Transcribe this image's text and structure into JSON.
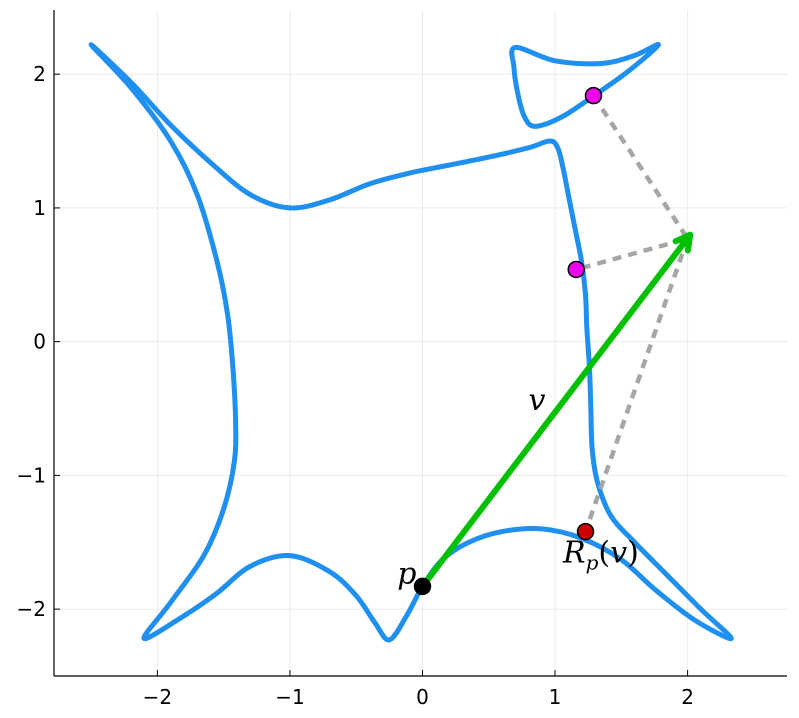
{
  "chart_data": {
    "type": "line",
    "title": "",
    "xlabel": "",
    "ylabel": "",
    "xlim": [
      -2.78,
      2.75
    ],
    "ylim": [
      -2.5,
      2.48
    ],
    "grid": true,
    "legend": "none",
    "x_ticks": [
      {
        "value": -2,
        "label": "−2"
      },
      {
        "value": -1,
        "label": "−1"
      },
      {
        "value": 0,
        "label": "0"
      },
      {
        "value": 1,
        "label": "1"
      },
      {
        "value": 2,
        "label": "2"
      }
    ],
    "y_ticks": [
      {
        "value": -2,
        "label": "−2"
      },
      {
        "value": -1,
        "label": "−1"
      },
      {
        "value": 0,
        "label": "0"
      },
      {
        "value": 1,
        "label": "1"
      },
      {
        "value": 2,
        "label": "2"
      }
    ],
    "series": [
      {
        "kind": "curve",
        "color": "#1f8ff0",
        "points": [
          [
            -2.5,
            2.22
          ],
          [
            -2.2,
            1.94
          ],
          [
            -1.9,
            1.62
          ],
          [
            -1.6,
            1.34
          ],
          [
            -1.3,
            1.1
          ],
          [
            -1.0,
            1.0
          ],
          [
            -0.7,
            1.06
          ],
          [
            -0.4,
            1.18
          ],
          [
            -0.1,
            1.26
          ],
          [
            0.2,
            1.32
          ],
          [
            0.5,
            1.38
          ],
          [
            0.8,
            1.45
          ],
          [
            0.96,
            1.5
          ],
          [
            1.02,
            1.45
          ],
          [
            1.06,
            1.3
          ],
          [
            1.1,
            1.1
          ],
          [
            1.15,
            0.85
          ],
          [
            1.2,
            0.6
          ],
          [
            1.23,
            0.35
          ],
          [
            1.24,
            0.1
          ],
          [
            1.26,
            -0.2
          ],
          [
            1.27,
            -0.5
          ],
          [
            1.28,
            -0.8
          ],
          [
            1.32,
            -1.05
          ],
          [
            1.42,
            -1.3
          ],
          [
            1.6,
            -1.5
          ],
          [
            1.85,
            -1.75
          ],
          [
            2.1,
            -2.0
          ],
          [
            2.33,
            -2.22
          ],
          [
            2.05,
            -2.08
          ],
          [
            1.75,
            -1.85
          ],
          [
            1.5,
            -1.63
          ],
          [
            1.2,
            -1.47
          ],
          [
            0.9,
            -1.4
          ],
          [
            0.6,
            -1.42
          ],
          [
            0.35,
            -1.5
          ],
          [
            0.15,
            -1.63
          ],
          [
            0.0,
            -1.83
          ],
          [
            -0.12,
            -2.05
          ],
          [
            -0.25,
            -2.23
          ],
          [
            -0.36,
            -2.1
          ],
          [
            -0.5,
            -1.9
          ],
          [
            -0.7,
            -1.72
          ],
          [
            -1.0,
            -1.6
          ],
          [
            -1.3,
            -1.68
          ],
          [
            -1.55,
            -1.88
          ],
          [
            -1.8,
            -2.05
          ],
          [
            -2.1,
            -2.22
          ],
          [
            -1.9,
            -1.95
          ],
          [
            -1.65,
            -1.6
          ],
          [
            -1.5,
            -1.25
          ],
          [
            -1.42,
            -0.9
          ],
          [
            -1.41,
            -0.6
          ],
          [
            -1.43,
            -0.2
          ],
          [
            -1.47,
            0.2
          ],
          [
            -1.55,
            0.6
          ],
          [
            -1.7,
            1.1
          ],
          [
            -1.9,
            1.5
          ],
          [
            -2.2,
            1.9
          ],
          [
            -2.5,
            2.22
          ]
        ]
      },
      {
        "kind": "curve",
        "color": "#1f8ff0",
        "points": [
          [
            0.7,
            2.2
          ],
          [
            1.0,
            2.1
          ],
          [
            1.35,
            2.08
          ],
          [
            1.6,
            2.14
          ],
          [
            1.78,
            2.22
          ],
          [
            1.55,
            2.02
          ],
          [
            1.28,
            1.83
          ],
          [
            1.05,
            1.68
          ],
          [
            0.85,
            1.61
          ],
          [
            0.77,
            1.68
          ],
          [
            0.72,
            1.85
          ],
          [
            0.69,
            2.05
          ],
          [
            0.7,
            2.2
          ]
        ]
      },
      {
        "kind": "dashed",
        "color": "#a6a6a6",
        "points": [
          [
            1.29,
            1.84
          ],
          [
            2.0,
            0.77
          ],
          [
            1.16,
            0.54
          ]
        ]
      },
      {
        "kind": "dashed",
        "color": "#a6a6a6",
        "points": [
          [
            2.0,
            0.77
          ],
          [
            1.23,
            -1.42
          ]
        ]
      },
      {
        "kind": "arrow",
        "name": "v",
        "color": "#00c000",
        "points": [
          [
            0.0,
            -1.83
          ],
          [
            2.02,
            0.8
          ]
        ]
      }
    ],
    "markers": [
      {
        "name": "p",
        "x": 0.0,
        "y": -1.83,
        "color": "#000000"
      },
      {
        "name": "",
        "x": 1.29,
        "y": 1.84,
        "color": "#ee00ee"
      },
      {
        "name": "",
        "x": 1.16,
        "y": 0.54,
        "color": "#ee00ee"
      },
      {
        "name": "R_p(v)",
        "x": 1.23,
        "y": -1.42,
        "color": "#cc0000"
      }
    ],
    "annotations": [
      {
        "text": "p",
        "x": -0.19,
        "y": -1.81
      },
      {
        "text": "v",
        "x": 0.8,
        "y": -0.51
      },
      {
        "text": "Rp(v)",
        "x": 1.06,
        "y": -1.65
      }
    ]
  }
}
